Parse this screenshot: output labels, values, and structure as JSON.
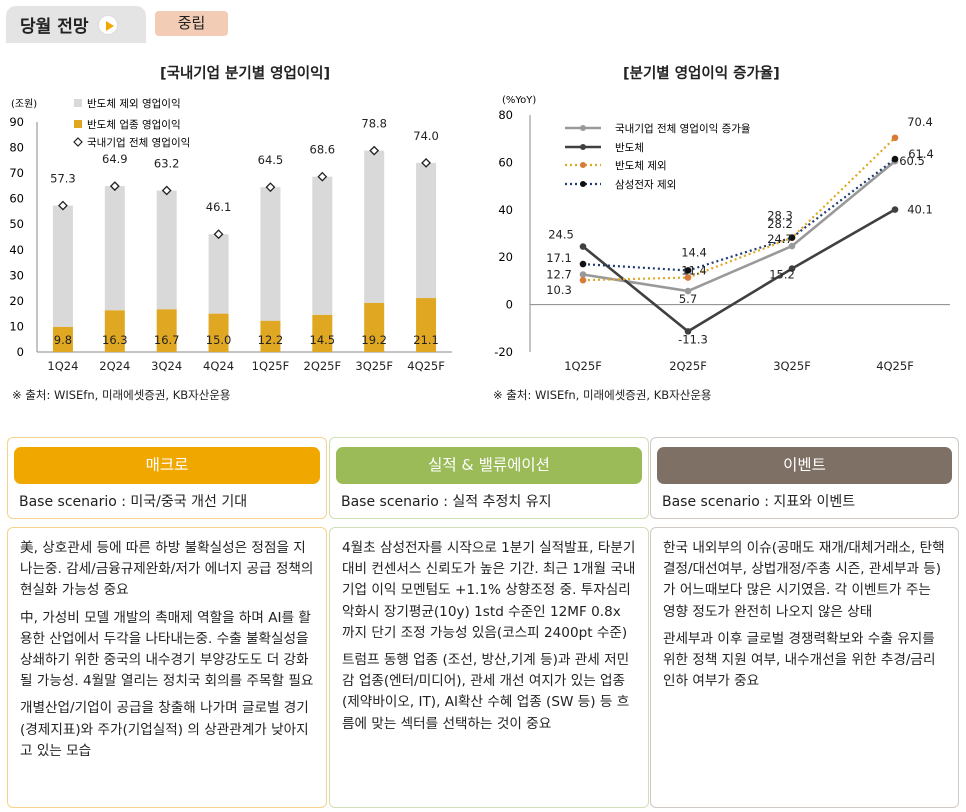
{
  "header": {
    "title": "당월 전망",
    "badge": "중립"
  },
  "colors": {
    "macro": "#f0a800",
    "earnings": "#9bbb59",
    "events": "#7f7065",
    "semi_excl": "#d9d9d9",
    "semi": "#e0a822",
    "line_total": "#999999",
    "line_semi": "#404040",
    "line_semi_excl": "#e0a822",
    "line_samsung_excl": "#1f3b73"
  },
  "chart_data": [
    {
      "type": "bar",
      "title": "[국내기업 분기별 영업이익]",
      "unit_label": "(조원)",
      "ylim": [
        0,
        90
      ],
      "yticks": [
        "0",
        "10",
        "20",
        "30",
        "40",
        "50",
        "60",
        "70",
        "80",
        "90"
      ],
      "categories": [
        "1Q24",
        "2Q24",
        "3Q24",
        "4Q24",
        "1Q25F",
        "2Q25F",
        "3Q25F",
        "4Q25F"
      ],
      "legend": [
        "반도체 제외 영업이익",
        "반도체 업종 영업이익",
        "국내기업 전체 영업이익"
      ],
      "series": [
        {
          "name": "반도체 업종 영업이익",
          "values": [
            9.8,
            16.3,
            16.7,
            15.0,
            12.2,
            14.5,
            19.2,
            21.1
          ],
          "labels": [
            "9.8",
            "16.3",
            "16.7",
            "15.0",
            "12.2",
            "14.5",
            "19.2",
            "21.1"
          ]
        },
        {
          "name": "국내기업 전체 영업이익",
          "values": [
            57.3,
            64.9,
            63.2,
            46.1,
            64.5,
            68.6,
            78.8,
            74.0
          ],
          "labels": [
            "57.3",
            "64.9",
            "63.2",
            "46.1",
            "64.5",
            "68.6",
            "78.8",
            "74.0"
          ]
        }
      ],
      "source": "※ 출처: WISEfn, 미래에셋증권, KB자산운용"
    },
    {
      "type": "line",
      "title": "[분기별 영업이익 증가율]",
      "unit_label": "(%YoY)",
      "ylim": [
        -20,
        80
      ],
      "yticks": [
        "-20",
        "0",
        "20",
        "40",
        "60",
        "80"
      ],
      "categories": [
        "1Q25F",
        "2Q25F",
        "3Q25F",
        "4Q25F"
      ],
      "series": [
        {
          "name": "국내기업 전체 영업이익 증가율",
          "values": [
            12.7,
            5.7,
            24.7,
            60.5
          ],
          "labels": [
            "12.7",
            "5.7",
            "24.7",
            "60.5"
          ]
        },
        {
          "name": "반도체",
          "values": [
            24.5,
            -11.3,
            15.2,
            40.1
          ],
          "labels": [
            "24.5",
            "-11.3",
            "15.2",
            "40.1"
          ]
        },
        {
          "name": "반도체 제외",
          "values": [
            10.3,
            11.4,
            28.2,
            70.4
          ],
          "labels": [
            "10.3",
            "11.4",
            "28.2",
            "70.4"
          ]
        },
        {
          "name": "삼성전자 제외",
          "values": [
            17.1,
            14.4,
            28.3,
            61.4
          ],
          "labels": [
            "17.1",
            "14.4",
            "28.3",
            "61.4"
          ]
        }
      ],
      "source": "※ 출처: WISEfn, 미래에셋증권, KB자산운용"
    }
  ],
  "columns": [
    {
      "label": "매크로",
      "scenario": "Base scenario : 미국/중국 개선 기대",
      "paragraphs": [
        "美, 상호관세 등에 따른 하방 불확실성은 정점을 지나는중. 감세/금융규제완화/저가 에너지 공급 정책의 현실화 가능성 중요",
        "中, 가성비 모델 개발의 촉매제 역할을 하며 AI를 활용한 산업에서 두각을 나타내는중. 수출 불확실성을 상쇄하기 위한 중국의 내수경기 부양강도도 더 강화될 가능성. 4월말 열리는 정치국 회의를 주목할 필요",
        "개별산업/기업이 공급을 창출해 나가며 글로벌 경기(경제지표)와 주가(기업실적) 의 상관관계가 낮아지고 있는 모습"
      ]
    },
    {
      "label": "실적 & 밸류에이션",
      "scenario": "Base scenario : 실적 추정치 유지",
      "paragraphs": [
        "4월초 삼성전자를 시작으로 1분기 실적발표, 타분기 대비 컨센서스 신뢰도가 높은 기간. 최근 1개월 국내기업 이익 모멘텀도 +1.1% 상향조정 중. 투자심리 악화시 장기평균(10y) 1std 수준인 12MF 0.8x 까지 단기 조정 가능성 있음(코스피 2400pt 수준)",
        "트럼프 동행 업종 (조선, 방산,기계 등)과 관세 저민감 업종(엔터/미디어), 관세 개선 여지가 있는 업종(제약바이오, IT), AI확산 수혜 업종 (SW 등) 등 흐름에 맞는 섹터를 선택하는 것이 중요"
      ]
    },
    {
      "label": "이벤트",
      "scenario": "Base scenario : 지표와 이벤트",
      "paragraphs": [
        "한국 내외부의 이슈(공매도 재개/대체거래소, 탄핵결정/대선여부, 상법개정/주총 시즌, 관세부과 등)가 어느때보다 많은 시기였음. 각 이벤트가 주는 영향 정도가 완전히 나오지 않은 상태",
        "관세부과 이후 글로벌 경쟁력확보와 수출 유지를 위한 정책 지원 여부, 내수개선을 위한 추경/금리인하 여부가 중요"
      ]
    }
  ]
}
